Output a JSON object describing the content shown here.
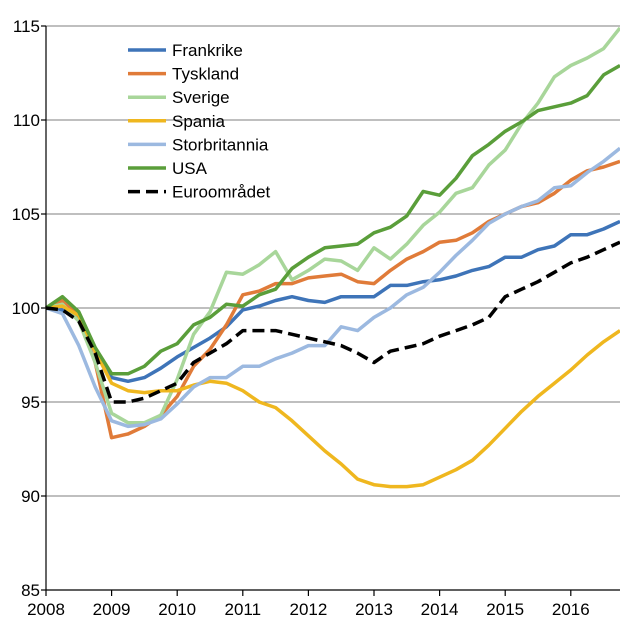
{
  "chart_data": {
    "type": "line",
    "title": "",
    "xlabel": "",
    "ylabel": "",
    "xlim": [
      2008,
      2016.75
    ],
    "ylim": [
      85,
      115
    ],
    "yticks": [
      85,
      90,
      95,
      100,
      105,
      110,
      115
    ],
    "xticks": [
      2008,
      2009,
      2010,
      2011,
      2012,
      2013,
      2014,
      2015,
      2016
    ],
    "x_tick_labels": [
      "2008",
      "2009",
      "2010",
      "2011",
      "2012",
      "2013",
      "2014",
      "2015",
      "2016"
    ],
    "y_tick_labels": [
      "85",
      "90",
      "95",
      "100",
      "105",
      "110",
      "115"
    ],
    "grid": "horizontal",
    "legend_position": "top-left",
    "x": [
      2008,
      2008.25,
      2008.5,
      2008.75,
      2009,
      2009.25,
      2009.5,
      2009.75,
      2010,
      2010.25,
      2010.5,
      2010.75,
      2011,
      2011.25,
      2011.5,
      2011.75,
      2012,
      2012.25,
      2012.5,
      2012.75,
      2013,
      2013.25,
      2013.5,
      2013.75,
      2014,
      2014.25,
      2014.5,
      2014.75,
      2015,
      2015.25,
      2015.5,
      2015.75,
      2016,
      2016.25,
      2016.5,
      2016.75
    ],
    "series": [
      {
        "name": "Frankrike",
        "color": "#3e74b8",
        "dashed": false,
        "values": [
          100,
          99.9,
          99.4,
          97.8,
          96.3,
          96.1,
          96.3,
          96.8,
          97.4,
          97.9,
          98.4,
          99.0,
          99.9,
          100.1,
          100.4,
          100.6,
          100.4,
          100.3,
          100.6,
          100.6,
          100.6,
          101.2,
          101.2,
          101.4,
          101.5,
          101.7,
          102.0,
          102.2,
          102.7,
          102.7,
          103.1,
          103.3,
          103.9,
          103.9,
          104.2,
          104.6
        ]
      },
      {
        "name": "Tyskland",
        "color": "#e07b39",
        "dashed": false,
        "values": [
          100,
          100.4,
          99.6,
          97.1,
          93.1,
          93.3,
          93.7,
          94.3,
          95.3,
          96.9,
          97.8,
          99.1,
          100.7,
          100.9,
          101.3,
          101.3,
          101.6,
          101.7,
          101.8,
          101.4,
          101.3,
          102.0,
          102.6,
          103.0,
          103.5,
          103.6,
          104.0,
          104.6,
          105.0,
          105.4,
          105.6,
          106.1,
          106.8,
          107.3,
          107.5,
          107.8
        ]
      },
      {
        "name": "Sverige",
        "color": "#a8d69a",
        "dashed": false,
        "values": [
          100,
          100.2,
          99.3,
          97.1,
          94.4,
          93.9,
          93.9,
          94.3,
          96.2,
          98.6,
          99.8,
          101.9,
          101.8,
          102.3,
          103.0,
          101.5,
          102.0,
          102.6,
          102.5,
          102.0,
          103.2,
          102.6,
          103.4,
          104.4,
          105.1,
          106.1,
          106.4,
          107.6,
          108.4,
          109.8,
          110.9,
          112.3,
          112.9,
          113.3,
          113.8,
          114.9
        ]
      },
      {
        "name": "Spania",
        "color": "#efb71f",
        "dashed": false,
        "values": [
          100,
          100.1,
          99.6,
          97.7,
          96.0,
          95.6,
          95.5,
          95.6,
          95.6,
          95.9,
          96.1,
          96.0,
          95.6,
          95.0,
          94.7,
          94.0,
          93.2,
          92.4,
          91.7,
          90.9,
          90.6,
          90.5,
          90.5,
          90.6,
          91.0,
          91.4,
          91.9,
          92.7,
          93.6,
          94.5,
          95.3,
          96.0,
          96.7,
          97.5,
          98.2,
          98.8
        ]
      },
      {
        "name": "Storbritannia",
        "color": "#9cb9e0",
        "dashed": false,
        "values": [
          100,
          99.7,
          98.0,
          95.8,
          94.0,
          93.7,
          93.8,
          94.1,
          94.9,
          95.8,
          96.3,
          96.3,
          96.9,
          96.9,
          97.3,
          97.6,
          98.0,
          98.0,
          99.0,
          98.8,
          99.5,
          100.0,
          100.7,
          101.1,
          101.9,
          102.8,
          103.6,
          104.5,
          105.0,
          105.4,
          105.7,
          106.4,
          106.5,
          107.2,
          107.8,
          108.5
        ]
      },
      {
        "name": "USA",
        "color": "#5a9e3a",
        "dashed": false,
        "values": [
          100,
          100.6,
          99.8,
          97.9,
          96.5,
          96.5,
          96.9,
          97.7,
          98.1,
          99.1,
          99.5,
          100.2,
          100.1,
          100.7,
          101.0,
          102.1,
          102.7,
          103.2,
          103.3,
          103.4,
          104.0,
          104.3,
          104.9,
          106.2,
          106.0,
          106.9,
          108.1,
          108.7,
          109.4,
          109.9,
          110.5,
          110.7,
          110.9,
          111.3,
          112.4,
          112.9
        ]
      },
      {
        "name": "Euroområdet",
        "color": "#000000",
        "dashed": true,
        "values": [
          100,
          99.9,
          99.3,
          97.6,
          95.0,
          95.0,
          95.2,
          95.6,
          96.0,
          97.1,
          97.6,
          98.1,
          98.8,
          98.8,
          98.8,
          98.6,
          98.4,
          98.2,
          98.0,
          97.6,
          97.1,
          97.7,
          97.9,
          98.1,
          98.5,
          98.8,
          99.1,
          99.5,
          100.6,
          101.0,
          101.4,
          101.9,
          102.4,
          102.7,
          103.1,
          103.5
        ]
      }
    ]
  }
}
